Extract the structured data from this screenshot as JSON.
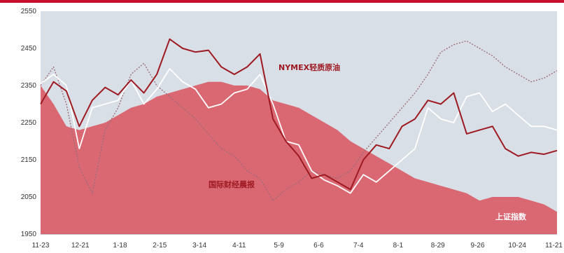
{
  "chart_data": {
    "type": "line",
    "title": "",
    "xlabel": "",
    "ylabel": "",
    "ylim": [
      1950,
      2550
    ],
    "yticks": [
      "2550",
      "2450",
      "2350",
      "2250",
      "2150",
      "2050",
      "1950"
    ],
    "x_tick_labels": [
      "11-23",
      "12-21",
      "1-18",
      "2-15",
      "3-14",
      "4-11",
      "5-9",
      "6-6",
      "7-4",
      "8-1",
      "8-29",
      "9-26",
      "10-24",
      "11-21"
    ],
    "grid": false,
    "colors": {
      "top_bar": "#c8102e",
      "plot_bg": "#d9dfe6",
      "area_fill": "#d9545e",
      "nymex": "#9e1a22",
      "white_series": "#ffffff",
      "dotted": "#9a6a76"
    },
    "series": [
      {
        "name": "NYMEX轻质原油",
        "style": "line",
        "values": [
          2300,
          2360,
          2335,
          2240,
          2310,
          2345,
          2325,
          2365,
          2330,
          2380,
          2475,
          2450,
          2440,
          2445,
          2400,
          2380,
          2400,
          2435,
          2260,
          2200,
          2160,
          2100,
          2110,
          2090,
          2070,
          2150,
          2190,
          2180,
          2240,
          2260,
          2310,
          2300,
          2330,
          2220,
          2230,
          2240,
          2180,
          2160,
          2170,
          2165,
          2175
        ]
      },
      {
        "name": "",
        "style": "line-white",
        "values": [
          2355,
          2380,
          2350,
          2180,
          2290,
          2300,
          2310,
          2365,
          2300,
          2340,
          2395,
          2360,
          2340,
          2290,
          2300,
          2330,
          2340,
          2380,
          2300,
          2200,
          2190,
          2120,
          2095,
          2080,
          2060,
          2110,
          2090,
          2120,
          2150,
          2180,
          2290,
          2260,
          2250,
          2320,
          2330,
          2280,
          2300,
          2270,
          2240,
          2240,
          2230
        ]
      },
      {
        "name": "国际财经晨报",
        "style": "dotted",
        "values": [
          2350,
          2400,
          2300,
          2130,
          2060,
          2230,
          2290,
          2380,
          2410,
          2350,
          2320,
          2290,
          2260,
          2220,
          2180,
          2160,
          2120,
          2100,
          2040,
          2070,
          2090,
          2120,
          2110,
          2100,
          2120,
          2170,
          2210,
          2250,
          2290,
          2330,
          2380,
          2440,
          2460,
          2470,
          2450,
          2430,
          2400,
          2380,
          2360,
          2370,
          2390
        ]
      },
      {
        "name": "上证指数",
        "style": "area",
        "values": [
          2350,
          2300,
          2240,
          2230,
          2240,
          2250,
          2270,
          2290,
          2300,
          2320,
          2330,
          2340,
          2350,
          2360,
          2360,
          2350,
          2350,
          2340,
          2310,
          2300,
          2290,
          2270,
          2250,
          2230,
          2200,
          2180,
          2160,
          2140,
          2120,
          2100,
          2090,
          2080,
          2070,
          2060,
          2040,
          2050,
          2050,
          2050,
          2040,
          2030,
          2010
        ]
      }
    ],
    "labels": {
      "nymex": "NYMEX轻质原油",
      "white_series": "",
      "dotted": "国际财经晨报",
      "area": "上证指数"
    }
  }
}
